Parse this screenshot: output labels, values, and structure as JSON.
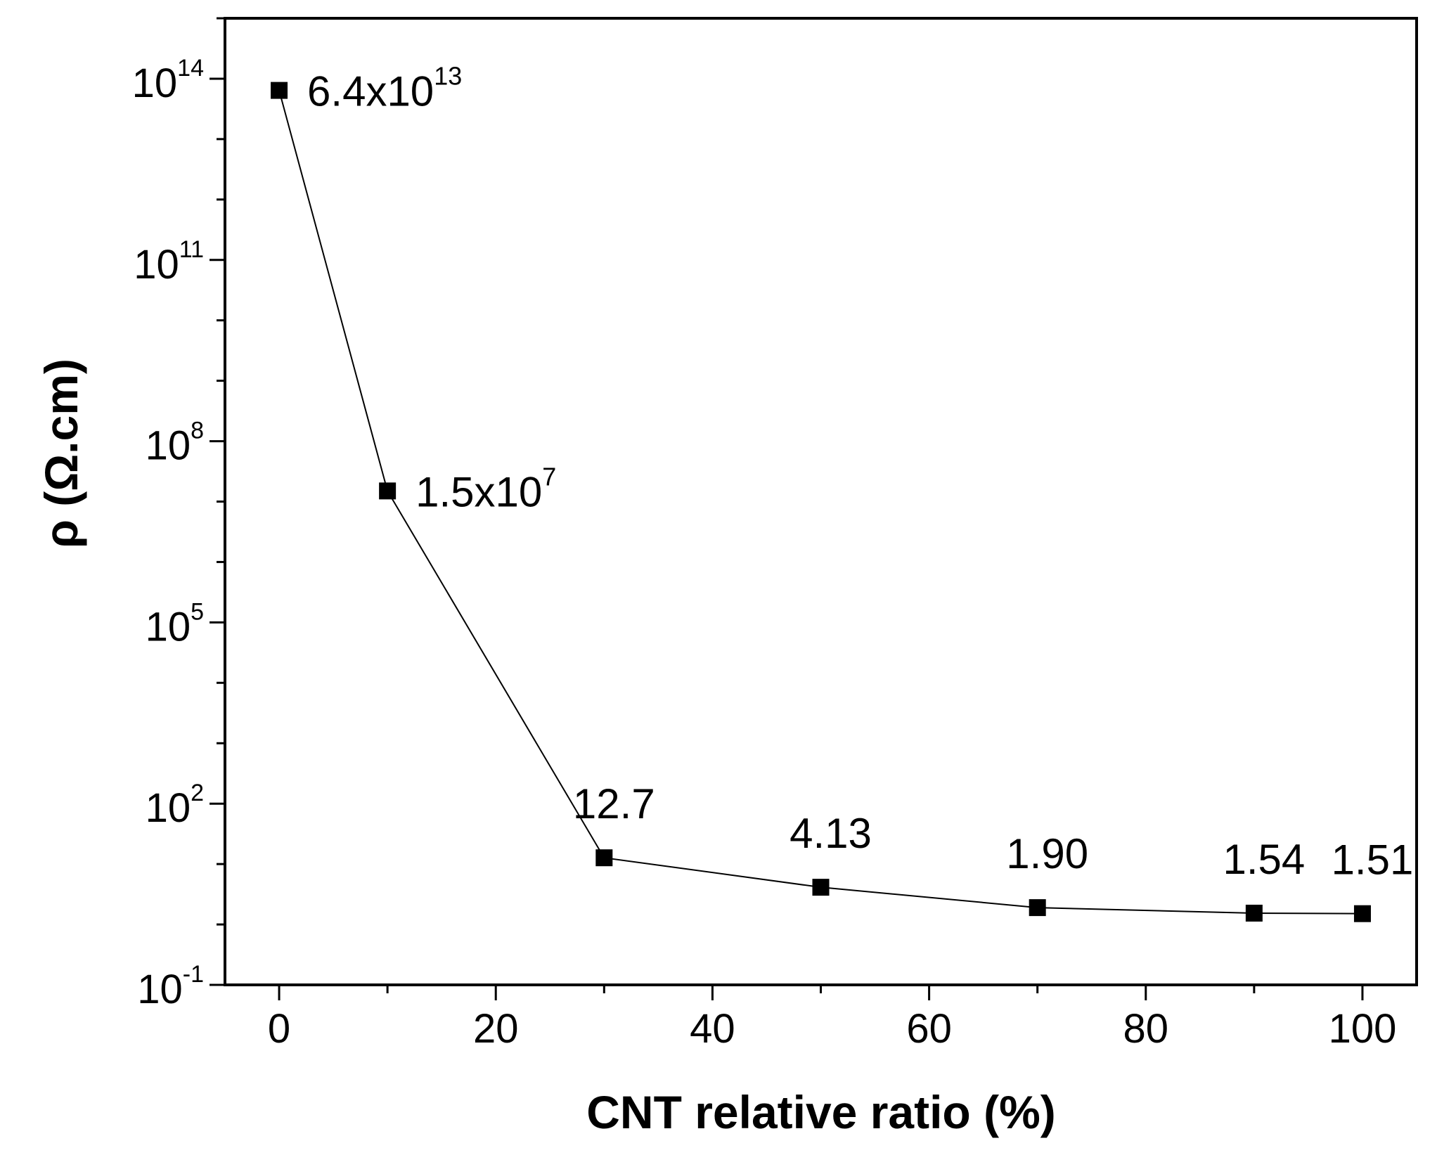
{
  "chart_data": {
    "type": "line",
    "title": "",
    "xlabel": "CNT relative ratio (%)",
    "ylabel": "ρ (Ω.cm)",
    "xlim": [
      -5,
      105
    ],
    "ylim_log10": [
      -1,
      15
    ],
    "y_scale": "log",
    "x_ticks": [
      "0",
      "20",
      "40",
      "60",
      "80",
      "100"
    ],
    "x_tick_values": [
      0,
      20,
      40,
      60,
      80,
      100
    ],
    "y_ticks": [
      {
        "base": "10",
        "exp": "14",
        "log10": 14
      },
      {
        "base": "10",
        "exp": "11",
        "log10": 11
      },
      {
        "base": "10",
        "exp": "8",
        "log10": 8
      },
      {
        "base": "10",
        "exp": "5",
        "log10": 5
      },
      {
        "base": "10",
        "exp": "2",
        "log10": 2
      },
      {
        "base": "10",
        "exp": "-1",
        "log10": -1
      }
    ],
    "series": [
      {
        "name": "resistivity",
        "x": [
          0,
          10,
          30,
          50,
          70,
          90,
          100
        ],
        "y": [
          64000000000000.0,
          15000000.0,
          12.7,
          4.13,
          1.9,
          1.54,
          1.51
        ],
        "labels": [
          {
            "text": "6.4x10",
            "sup": "13"
          },
          {
            "text": "1.5x10",
            "sup": "7"
          },
          {
            "text": "12.7",
            "sup": ""
          },
          {
            "text": "4.13",
            "sup": ""
          },
          {
            "text": "1.90",
            "sup": ""
          },
          {
            "text": "1.54",
            "sup": ""
          },
          {
            "text": "1.51",
            "sup": ""
          }
        ]
      }
    ]
  }
}
